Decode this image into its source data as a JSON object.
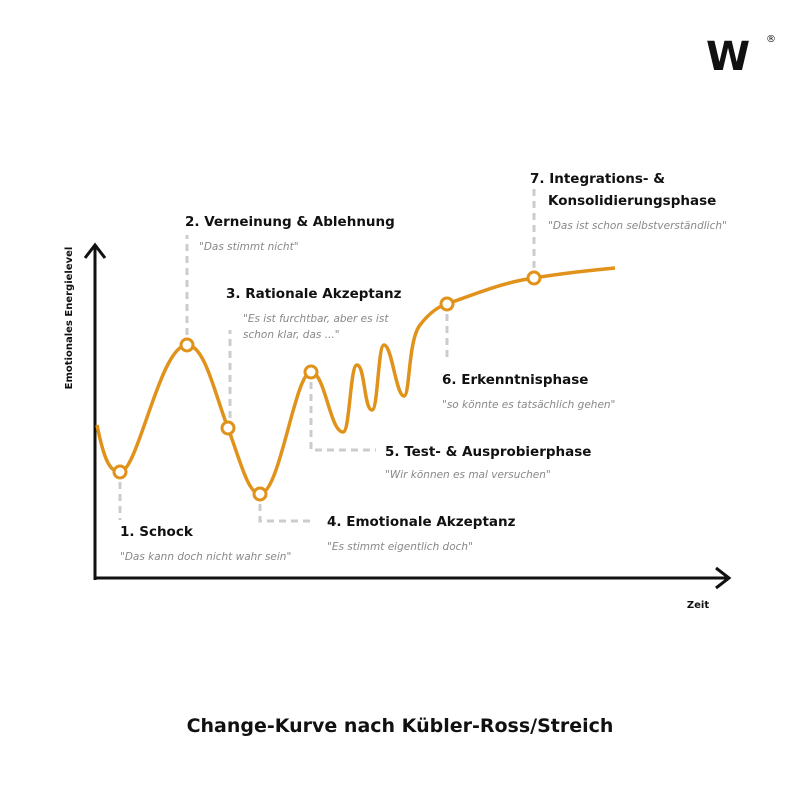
{
  "logo": {
    "mark": "W",
    "registered": "®"
  },
  "axes": {
    "y_label": "Emotionales Energielevel",
    "x_label": "Zeit"
  },
  "phases": [
    {
      "title": [
        "1. Schock"
      ],
      "quote": [
        "\"Das kann doch nicht wahr sein\""
      ]
    },
    {
      "title": [
        "2. Verneinung & Ablehnung"
      ],
      "quote": [
        "\"Das stimmt nicht\""
      ]
    },
    {
      "title": [
        "3. Rationale Akzeptanz"
      ],
      "quote": [
        "\"Es ist furchtbar, aber es ist",
        "schon klar, das ...\""
      ]
    },
    {
      "title": [
        "4. Emotionale Akzeptanz"
      ],
      "quote": [
        "\"Es stimmt eigentlich doch\""
      ]
    },
    {
      "title": [
        "5. Test- & Ausprobierphase"
      ],
      "quote": [
        "\"Wir können es mal versuchen\""
      ]
    },
    {
      "title": [
        "6. Erkenntnisphase"
      ],
      "quote": [
        "\"so könnte es tatsächlich gehen\""
      ]
    },
    {
      "title": [
        "7. Integrations- &",
        "Konsolidierungsphase"
      ],
      "quote": [
        "\"Das ist schon selbstverständlich\""
      ]
    }
  ],
  "footer": {
    "title": "Change-Kurve nach Kübler-Ross/Streich"
  }
}
